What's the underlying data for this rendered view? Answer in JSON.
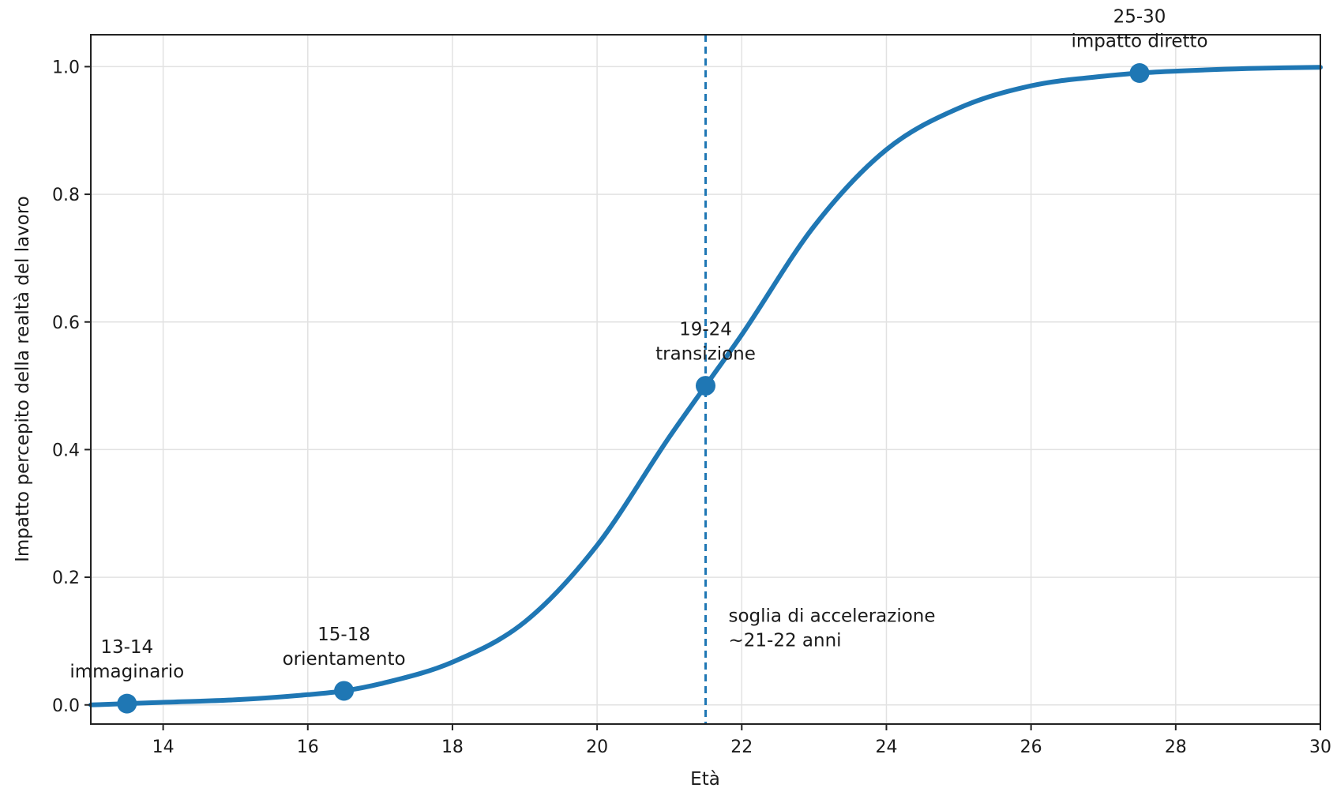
{
  "chart_data": {
    "type": "line",
    "xlabel": "Età",
    "ylabel": "Impatto percepito della realtà del lavoro",
    "xlim": [
      13,
      30
    ],
    "ylim": [
      -0.03,
      1.05
    ],
    "xticks": [
      14,
      16,
      18,
      20,
      22,
      24,
      26,
      28,
      30
    ],
    "xtick_labels": [
      "14",
      "16",
      "18",
      "20",
      "22",
      "24",
      "26",
      "28",
      "30"
    ],
    "yticks": [
      0.0,
      0.2,
      0.4,
      0.6,
      0.8,
      1.0
    ],
    "ytick_labels": [
      "0.0",
      "0.2",
      "0.4",
      "0.6",
      "0.8",
      "1.0"
    ],
    "grid": true,
    "color": "#1f77b4",
    "curve": {
      "x": [
        13,
        14,
        15,
        16,
        16.5,
        17,
        18,
        19,
        20,
        21,
        21.5,
        22,
        23,
        24,
        25,
        26,
        27,
        27.5,
        28,
        29,
        30
      ],
      "y": [
        0.0,
        0.004,
        0.008,
        0.016,
        0.022,
        0.033,
        0.067,
        0.13,
        0.25,
        0.42,
        0.5,
        0.58,
        0.75,
        0.87,
        0.935,
        0.97,
        0.985,
        0.99,
        0.993,
        0.997,
        0.999
      ]
    },
    "points": [
      {
        "x": 13.5,
        "y": 0.002,
        "label_line1": "13-14",
        "label_line2": "immaginario"
      },
      {
        "x": 16.5,
        "y": 0.022,
        "label_line1": "15-18",
        "label_line2": "orientamento"
      },
      {
        "x": 21.5,
        "y": 0.5,
        "label_line1": "19-24",
        "label_line2": "transizione"
      },
      {
        "x": 27.5,
        "y": 0.99,
        "label_line1": "25-30",
        "label_line2": "impatto diretto"
      }
    ],
    "threshold": {
      "x": 21.5,
      "style": "dashed",
      "label_line1": "soglia di accelerazione",
      "label_line2": "~21-22 anni"
    }
  }
}
